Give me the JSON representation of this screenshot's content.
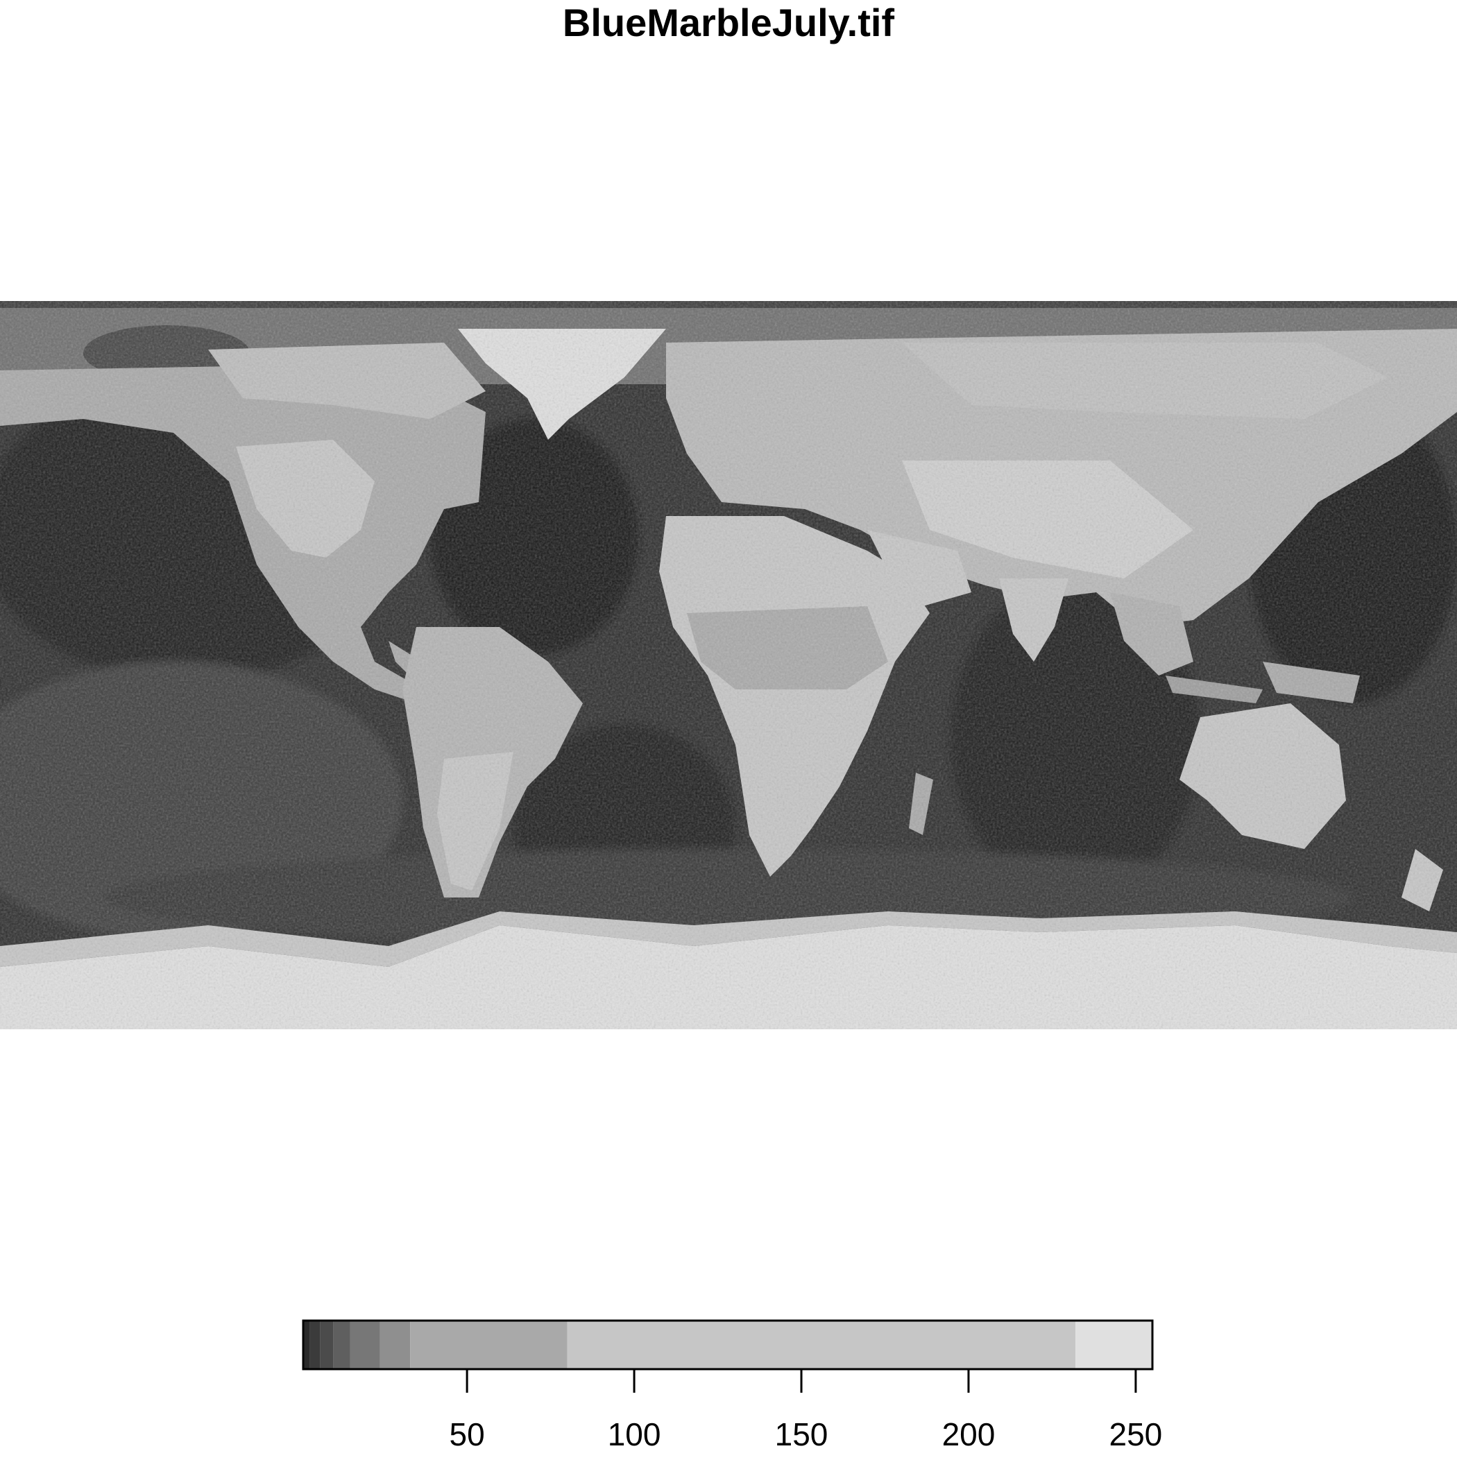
{
  "title": "BlueMarbleJuly.tif",
  "legend": {
    "type": "raster-colorbar",
    "range": [
      1,
      255
    ],
    "breaks": [
      1,
      3,
      6,
      10,
      15,
      24,
      33,
      80,
      232,
      255
    ],
    "colors": [
      "#2a2a2a",
      "#3b3b3b",
      "#4b4b4b",
      "#5f5f5f",
      "#777777",
      "#8f8f8f",
      "#a9a9a9",
      "#c6c6c6",
      "#e0e0e0"
    ],
    "ticks": [
      50,
      100,
      150,
      200,
      250
    ],
    "tick_labels": [
      "50",
      "100",
      "150",
      "200",
      "250"
    ]
  },
  "map": {
    "projection": "equirectangular",
    "extent_lon": [
      -180,
      180
    ],
    "extent_lat": [
      -90,
      90
    ],
    "colors": {
      "ocean_dark": "#141414",
      "ocean_mid": "#3a3a3a",
      "land_mid": "#a9a9a9",
      "land_light": "#c6c6c6",
      "ice": "#e0e0e0"
    }
  }
}
